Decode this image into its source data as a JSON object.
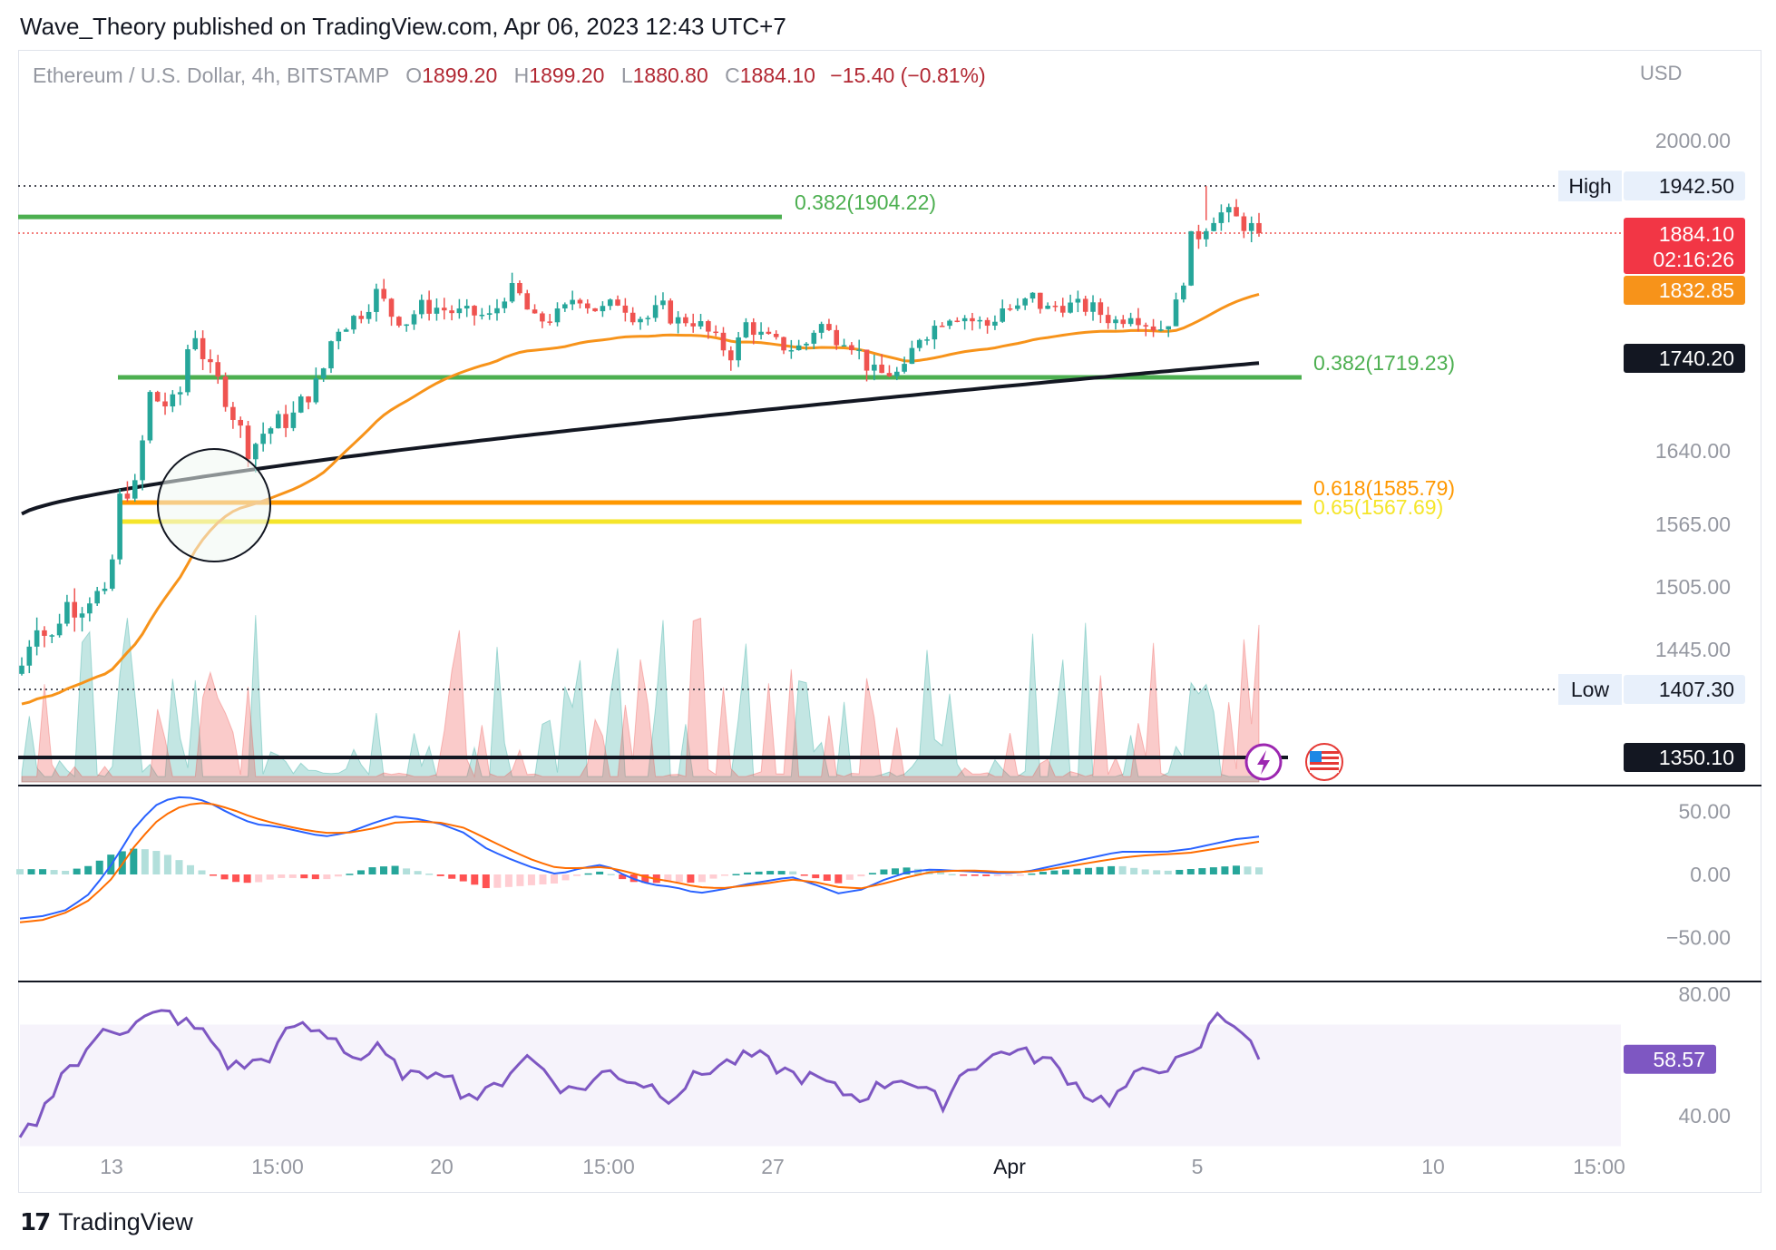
{
  "header": "Wave_Theory published on TradingView.com, Apr 06, 2023 12:43 UTC+7",
  "legend": {
    "symbol": "Ethereum / U.S. Dollar, 4h, BITSTAMP",
    "open_label": "O",
    "open": "1899.20",
    "high_label": "H",
    "high": "1899.20",
    "low_label": "L",
    "low": "1880.80",
    "close_label": "C",
    "close": "1884.10",
    "change": "−15.40 (−0.81%)"
  },
  "currency": "USD",
  "footer": "TradingView",
  "icons": {
    "lightning": "lightning-icon",
    "flag": "us-flag-icon"
  },
  "colors": {
    "up": "#26a69a",
    "down": "#ef5350",
    "ema50": "#f7931a",
    "ema200": "#131722",
    "fib382": "#4caf50",
    "fib618": "#ff9800",
    "fib65": "#f5e52a",
    "macd": "#2962ff",
    "signal": "#ff6d00",
    "rsi": "#7e57c2"
  },
  "chart_data": [
    {
      "type": "candlestick",
      "title": "Ethereum / U.S. Dollar, 4h, BITSTAMP",
      "ylabel": "USD",
      "ylim": [
        1350,
        2040
      ],
      "y_ticks": [
        "2000.00",
        "1640.00",
        "1565.00",
        "1505.00",
        "1445.00"
      ],
      "x_ticks": [
        "13",
        "15:00",
        "20",
        "15:00",
        "27",
        "Apr",
        "5",
        "10",
        "15:00"
      ],
      "close_path": [
        1430,
        1475,
        1450,
        1490,
        1485,
        1500,
        1490,
        1600,
        1600,
        1700,
        1690,
        1690,
        1785,
        1730,
        1710,
        1675,
        1640,
        1660,
        1670,
        1675,
        1700,
        1715,
        1780,
        1790,
        1805,
        1830,
        1800,
        1790,
        1810,
        1810,
        1805,
        1800,
        1800,
        1795,
        1830,
        1825,
        1790,
        1795,
        1800,
        1830,
        1810,
        1805,
        1820,
        1800,
        1795,
        1810,
        1790,
        1795,
        1780,
        1760,
        1745,
        1790,
        1770,
        1760,
        1755,
        1755,
        1790,
        1770,
        1770,
        1745,
        1720,
        1725,
        1720,
        1770,
        1780,
        1800,
        1800,
        1790,
        1785,
        1810,
        1805,
        1825,
        1805,
        1815,
        1810,
        1810,
        1800,
        1790,
        1805,
        1790,
        1780,
        1800,
        1870,
        1890,
        1910,
        1905,
        1895,
        1885
      ],
      "high": {
        "label": "High",
        "value": "1942.50"
      },
      "low": {
        "label": "Low",
        "value": "1407.30"
      },
      "last_price": {
        "value": "1884.10",
        "countdown": "02:16:26"
      },
      "ema_50": {
        "value": "1832.85"
      },
      "ema_200": {
        "value": "1740.20"
      },
      "fib_levels": [
        {
          "label": "0.382(1904.22)",
          "value": 1904.22
        },
        {
          "label": "0.382(1719.23)",
          "value": 1719.23
        },
        {
          "label": "0.618(1585.79)",
          "value": 1585.79
        },
        {
          "label": "0.65(1567.69)",
          "value": 1567.69
        }
      ],
      "support_line": {
        "value": "1350.10"
      }
    },
    {
      "type": "line",
      "title": "MACD",
      "y_ticks": [
        "50.00",
        "0.00",
        "−50.00"
      ],
      "ylim": [
        -70,
        70
      ],
      "series": [
        {
          "values": [
            -35,
            -33,
            -28,
            -15,
            10,
            40,
            58,
            62,
            58,
            48,
            40,
            38,
            34,
            30,
            33,
            40,
            46,
            44,
            40,
            33,
            20,
            12,
            5,
            0,
            5,
            8,
            -2,
            -8,
            -10,
            -15,
            -12,
            -8,
            -5,
            -2,
            -8,
            -15,
            -12,
            -4,
            2,
            4,
            3,
            2,
            1,
            2,
            6,
            10,
            14,
            18,
            18,
            18,
            20,
            24,
            28,
            30
          ]
        },
        {
          "values": [
            -38,
            -36,
            -30,
            -20,
            -2,
            25,
            45,
            55,
            57,
            52,
            45,
            40,
            36,
            33,
            33,
            36,
            41,
            42,
            41,
            37,
            28,
            19,
            11,
            5,
            5,
            6,
            2,
            -3,
            -6,
            -10,
            -11,
            -9,
            -7,
            -4,
            -6,
            -10,
            -11,
            -7,
            -2,
            2,
            3,
            3,
            2,
            2,
            4,
            7,
            10,
            13,
            15,
            16,
            17,
            20,
            23,
            26
          ]
        }
      ]
    },
    {
      "type": "line",
      "title": "RSI",
      "y_ticks": [
        "80.00",
        "40.00"
      ],
      "ylim": [
        35,
        85
      ],
      "series": [
        {
          "values": [
            32,
            40,
            55,
            58,
            70,
            68,
            72,
            74,
            70,
            66,
            56,
            57,
            60,
            70,
            68,
            66,
            58,
            62,
            55,
            52,
            57,
            48,
            46,
            52,
            60,
            55,
            48,
            50,
            55,
            52,
            50,
            46,
            52,
            56,
            58,
            60,
            56,
            53,
            52,
            48,
            46,
            50,
            53,
            48,
            44,
            56,
            58,
            62,
            60,
            58,
            52,
            46,
            45,
            52,
            56,
            57,
            60,
            74,
            70,
            58
          ]
        },
        {
          "label": "58.57",
          "value": 58.57
        }
      ]
    },
    {
      "type": "area",
      "title": "Volume"
    }
  ]
}
